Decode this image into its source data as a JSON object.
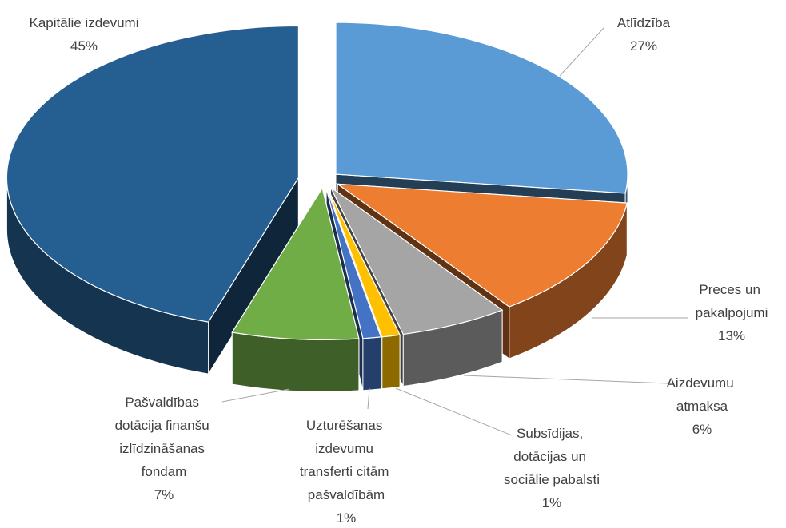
{
  "chart_data": {
    "type": "pie3d",
    "categories": [
      "Atlīdzība",
      "Preces un pakalpojumi",
      "Aizdevumu atmaksa",
      "Subsīdijas, dotācijas un sociālie pabalsti",
      "Uzturēšanas izdevumu transferti citām pašvaldībām",
      "Pašvaldības dotācija finanšu izlīdzināšanas fondam",
      "Kapitālie izdevumi"
    ],
    "values": [
      27,
      13,
      6,
      1,
      1,
      7,
      45
    ],
    "value_labels": [
      "27%",
      "13%",
      "6%",
      "1%",
      "1%",
      "7%",
      "45%"
    ],
    "colors": [
      "#5b9bd5",
      "#ed7d31",
      "#a5a5a5",
      "#ffc000",
      "#4472c4",
      "#70ad47",
      "#255e91"
    ]
  }
}
